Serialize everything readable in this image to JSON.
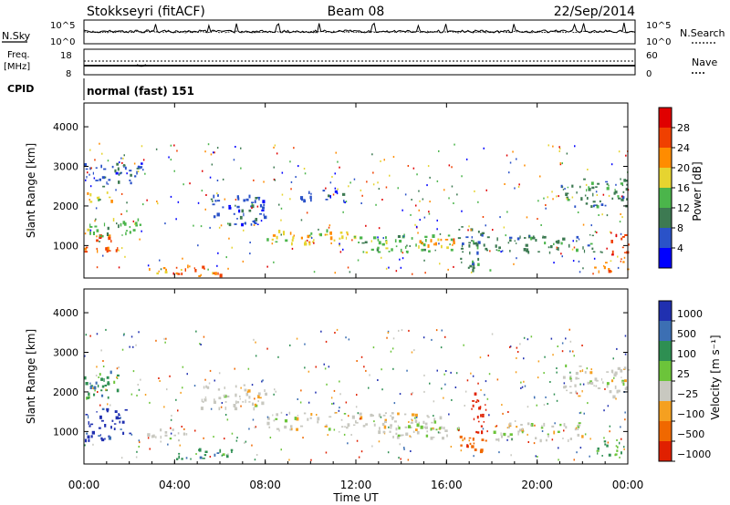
{
  "header": {
    "station": "Stokkseyri (fitACF)",
    "beam": "Beam 08",
    "date": "22/Sep/2014"
  },
  "strip": {
    "nsky_label": "N.Sky",
    "nsearch_label": "N.Search",
    "freq_label": "Freq.",
    "freq_unit": "[MHz]",
    "nave_label": "Nave",
    "cpid_label": "CPID",
    "cpid_value": "normal (fast) 151",
    "noise_ticks": [
      "10^5",
      "10^0"
    ],
    "freq_ticks": [
      "18",
      "8"
    ],
    "nave_ticks": [
      "60",
      "0"
    ]
  },
  "chart_data": [
    {
      "type": "heatmap",
      "name": "power",
      "ylabel": "Slant Range [km]",
      "xlabel": "",
      "ylim": [
        180,
        4600
      ],
      "yticks": [
        1000,
        2000,
        3000,
        4000
      ],
      "colorbar_label": "Power [dB]",
      "colorbar_ticks": [
        "4",
        "8",
        "12",
        "16",
        "20",
        "24",
        "28"
      ],
      "colors": [
        "#0000ff",
        "#2a52c8",
        "#3d7a52",
        "#4bb54b",
        "#e6d430",
        "#ff8c00",
        "#f04000",
        "#e00000"
      ],
      "bands": [
        {
          "t0": 0.0,
          "t1": 1.6,
          "r0": 850,
          "r1": 1300,
          "v": 26
        },
        {
          "t0": 0.0,
          "t1": 2.5,
          "r0": 1250,
          "r1": 1700,
          "v": 12
        },
        {
          "t0": 0.0,
          "t1": 1.2,
          "r0": 2100,
          "r1": 2400,
          "v": 16
        },
        {
          "t0": 0.0,
          "t1": 2.5,
          "r0": 2500,
          "r1": 3100,
          "v": 4
        },
        {
          "t0": 2.8,
          "t1": 4.6,
          "r0": 320,
          "r1": 520,
          "v": 22
        },
        {
          "t0": 3.8,
          "t1": 5.4,
          "r0": 250,
          "r1": 500,
          "v": 24
        },
        {
          "t0": 4.6,
          "t1": 6.2,
          "r0": 250,
          "r1": 420,
          "v": 20
        },
        {
          "t0": 5.5,
          "t1": 8.0,
          "r0": 1500,
          "r1": 2300,
          "v": 4
        },
        {
          "t0": 8.0,
          "t1": 12.0,
          "r0": 1050,
          "r1": 1450,
          "v": 16
        },
        {
          "t0": 9.5,
          "t1": 11.5,
          "r0": 2150,
          "r1": 2450,
          "v": 4
        },
        {
          "t0": 12.0,
          "t1": 16.5,
          "r0": 850,
          "r1": 1300,
          "v": 14
        },
        {
          "t0": 14.5,
          "t1": 16.5,
          "r0": 1000,
          "r1": 1200,
          "v": 20
        },
        {
          "t0": 16.5,
          "t1": 18.0,
          "r0": 400,
          "r1": 1500,
          "v": 8
        },
        {
          "t0": 18.0,
          "t1": 22.5,
          "r0": 850,
          "r1": 1300,
          "v": 8
        },
        {
          "t0": 21.0,
          "t1": 24.0,
          "r0": 2000,
          "r1": 2700,
          "v": 8
        },
        {
          "t0": 22.5,
          "t1": 24.0,
          "r0": 350,
          "r1": 700,
          "v": 22
        },
        {
          "t0": 23.2,
          "t1": 24.0,
          "r0": 700,
          "r1": 1300,
          "v": 24
        }
      ]
    },
    {
      "type": "heatmap",
      "name": "velocity",
      "ylabel": "Slant Range [km]",
      "xlabel": "Time UT",
      "ylim": [
        180,
        4600
      ],
      "yticks": [
        1000,
        2000,
        3000,
        4000
      ],
      "xticks": [
        "00:00",
        "04:00",
        "08:00",
        "12:00",
        "16:00",
        "20:00",
        "00:00"
      ],
      "xlim": [
        0,
        24
      ],
      "colorbar_label": "Velocity [m s⁻¹]",
      "colorbar_ticks": [
        "1000",
        "500",
        "100",
        "25",
        "−25",
        "−100",
        "−500",
        "−1000"
      ],
      "colors": [
        "#2030b0",
        "#3c6fb3",
        "#2e8f52",
        "#6cc43a",
        "#c8c8c0",
        "#f5a020",
        "#f06800",
        "#e02000"
      ],
      "bands": [
        {
          "t0": 0.0,
          "t1": 2.0,
          "r0": 800,
          "r1": 1600,
          "v": 800
        },
        {
          "t0": 0.0,
          "t1": 1.5,
          "r0": 1800,
          "r1": 2600,
          "v": 80
        },
        {
          "t0": 2.5,
          "t1": 4.5,
          "r0": 800,
          "r1": 1100,
          "v": 0
        },
        {
          "t0": 4.0,
          "t1": 6.5,
          "r0": 300,
          "r1": 600,
          "v": 80
        },
        {
          "t0": 5.0,
          "t1": 8.0,
          "r0": 1600,
          "r1": 2200,
          "v": 0
        },
        {
          "t0": 8.0,
          "t1": 16.0,
          "r0": 1000,
          "r1": 1500,
          "v": 0
        },
        {
          "t0": 13.0,
          "t1": 16.5,
          "r0": 850,
          "r1": 1200,
          "v": 0
        },
        {
          "t0": 16.5,
          "t1": 17.8,
          "r0": 500,
          "r1": 1000,
          "v": -400
        },
        {
          "t0": 17.0,
          "t1": 17.8,
          "r0": 1000,
          "r1": 2000,
          "v": -900
        },
        {
          "t0": 18.0,
          "t1": 22.0,
          "r0": 800,
          "r1": 1300,
          "v": 0
        },
        {
          "t0": 21.0,
          "t1": 24.0,
          "r0": 1900,
          "r1": 2700,
          "v": 0
        },
        {
          "t0": 22.5,
          "t1": 24.0,
          "r0": 400,
          "r1": 800,
          "v": 80
        }
      ]
    }
  ]
}
